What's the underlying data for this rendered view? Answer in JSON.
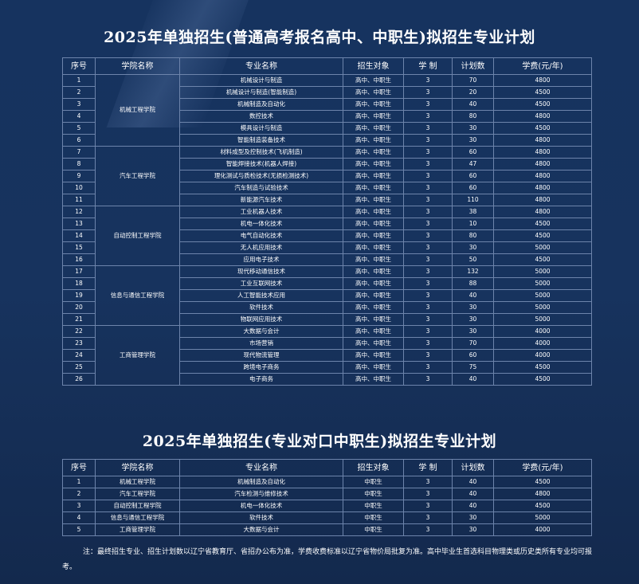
{
  "title1": "2025年单独招生(普通高考报名高中、中职生)拟招生专业计划",
  "title2": "2025年单独招生(专业对口中职生)拟招生专业计划",
  "headers": [
    "序号",
    "学院名称",
    "专业名称",
    "招生对象",
    "学 制",
    "计划数",
    "学费(元/年)"
  ],
  "table1": {
    "colleges": [
      {
        "name": "机械工程学院",
        "rows": [
          {
            "no": "1",
            "major": "机械设计与制造",
            "target": "高中、中职生",
            "years": "3",
            "plan": "70",
            "fee": "4800"
          },
          {
            "no": "2",
            "major": "机械设计与制造(智能制造)",
            "target": "高中、中职生",
            "years": "3",
            "plan": "20",
            "fee": "4500"
          },
          {
            "no": "3",
            "major": "机械制造及自动化",
            "target": "高中、中职生",
            "years": "3",
            "plan": "40",
            "fee": "4500"
          },
          {
            "no": "4",
            "major": "数控技术",
            "target": "高中、中职生",
            "years": "3",
            "plan": "80",
            "fee": "4800"
          },
          {
            "no": "5",
            "major": "模具设计与制造",
            "target": "高中、中职生",
            "years": "3",
            "plan": "30",
            "fee": "4500"
          },
          {
            "no": "6",
            "major": "智能制造装备技术",
            "target": "高中、中职生",
            "years": "3",
            "plan": "30",
            "fee": "4800"
          }
        ]
      },
      {
        "name": "汽车工程学院",
        "rows": [
          {
            "no": "7",
            "major": "材料成型及控制技术(飞机制造)",
            "target": "高中、中职生",
            "years": "3",
            "plan": "60",
            "fee": "4800"
          },
          {
            "no": "8",
            "major": "智能焊接技术(机器人焊接)",
            "target": "高中、中职生",
            "years": "3",
            "plan": "47",
            "fee": "4800"
          },
          {
            "no": "9",
            "major": "理化测试与质检技术(无损检测技术)",
            "target": "高中、中职生",
            "years": "3",
            "plan": "60",
            "fee": "4800"
          },
          {
            "no": "10",
            "major": "汽车制造与试验技术",
            "target": "高中、中职生",
            "years": "3",
            "plan": "60",
            "fee": "4800"
          },
          {
            "no": "11",
            "major": "新能源汽车技术",
            "target": "高中、中职生",
            "years": "3",
            "plan": "110",
            "fee": "4800"
          }
        ]
      },
      {
        "name": "自动控制工程学院",
        "rows": [
          {
            "no": "12",
            "major": "工业机器人技术",
            "target": "高中、中职生",
            "years": "3",
            "plan": "38",
            "fee": "4800"
          },
          {
            "no": "13",
            "major": "机电一体化技术",
            "target": "高中、中职生",
            "years": "3",
            "plan": "10",
            "fee": "4500"
          },
          {
            "no": "14",
            "major": "电气自动化技术",
            "target": "高中、中职生",
            "years": "3",
            "plan": "80",
            "fee": "4500"
          },
          {
            "no": "15",
            "major": "无人机应用技术",
            "target": "高中、中职生",
            "years": "3",
            "plan": "30",
            "fee": "5000"
          },
          {
            "no": "16",
            "major": "应用电子技术",
            "target": "高中、中职生",
            "years": "3",
            "plan": "50",
            "fee": "4500"
          }
        ]
      },
      {
        "name": "信息与通信工程学院",
        "rows": [
          {
            "no": "17",
            "major": "现代移动通信技术",
            "target": "高中、中职生",
            "years": "3",
            "plan": "132",
            "fee": "5000"
          },
          {
            "no": "18",
            "major": "工业互联网技术",
            "target": "高中、中职生",
            "years": "3",
            "plan": "88",
            "fee": "5000"
          },
          {
            "no": "19",
            "major": "人工智能技术应用",
            "target": "高中、中职生",
            "years": "3",
            "plan": "40",
            "fee": "5000"
          },
          {
            "no": "20",
            "major": "软件技术",
            "target": "高中、中职生",
            "years": "3",
            "plan": "30",
            "fee": "5000"
          },
          {
            "no": "21",
            "major": "物联网应用技术",
            "target": "高中、中职生",
            "years": "3",
            "plan": "30",
            "fee": "5000"
          }
        ]
      },
      {
        "name": "工商管理学院",
        "rows": [
          {
            "no": "22",
            "major": "大数据与会计",
            "target": "高中、中职生",
            "years": "3",
            "plan": "30",
            "fee": "4000"
          },
          {
            "no": "23",
            "major": "市场营销",
            "target": "高中、中职生",
            "years": "3",
            "plan": "70",
            "fee": "4000"
          },
          {
            "no": "24",
            "major": "现代物流管理",
            "target": "高中、中职生",
            "years": "3",
            "plan": "60",
            "fee": "4000"
          },
          {
            "no": "25",
            "major": "跨境电子商务",
            "target": "高中、中职生",
            "years": "3",
            "plan": "75",
            "fee": "4500"
          },
          {
            "no": "26",
            "major": "电子商务",
            "target": "高中、中职生",
            "years": "3",
            "plan": "40",
            "fee": "4500"
          }
        ]
      }
    ]
  },
  "table2": {
    "rows": [
      {
        "no": "1",
        "college": "机械工程学院",
        "major": "机械制造及自动化",
        "target": "中职生",
        "years": "3",
        "plan": "40",
        "fee": "4500"
      },
      {
        "no": "2",
        "college": "汽车工程学院",
        "major": "汽车检测与维修技术",
        "target": "中职生",
        "years": "3",
        "plan": "40",
        "fee": "4800"
      },
      {
        "no": "3",
        "college": "自动控制工程学院",
        "major": "机电一体化技术",
        "target": "中职生",
        "years": "3",
        "plan": "40",
        "fee": "4500"
      },
      {
        "no": "4",
        "college": "信息与通信工程学院",
        "major": "软件技术",
        "target": "中职生",
        "years": "3",
        "plan": "30",
        "fee": "5000"
      },
      {
        "no": "5",
        "college": "工商管理学院",
        "major": "大数据与会计",
        "target": "中职生",
        "years": "3",
        "plan": "30",
        "fee": "4000"
      }
    ]
  },
  "note": "注：最终招生专业、招生计划数以辽宁省教育厅、省招办公布为准，学费收费标准以辽宁省物价局批复为准。高中毕业生首选科目物理类或历史类所有专业均可报考。",
  "colors": {
    "background": "#16335f",
    "border": "#6d84ab",
    "text": "#ffffff"
  }
}
